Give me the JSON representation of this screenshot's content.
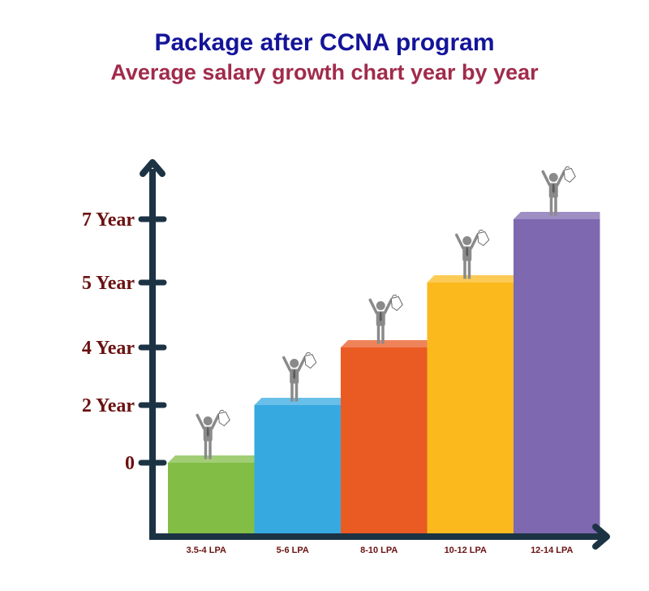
{
  "title": "Package after CCNA program",
  "subtitle": "Average salary growth chart year by year",
  "colors": {
    "title": "#14149a",
    "subtitle": "#a12b4c",
    "axis": "#1c3344",
    "tick_label": "#6b1111",
    "figure": "#8a8a8a"
  },
  "chart_data": {
    "type": "bar",
    "title": "Package after CCNA program",
    "subtitle": "Average salary growth chart year by year",
    "categories": [
      "3.5-4 LPA",
      "5-6 LPA",
      "8-10 LPA",
      "10-12 LPA",
      "12-14 LPA"
    ],
    "values": [
      0,
      2,
      4,
      5,
      7
    ],
    "y_ticks": [
      {
        "value": 0,
        "label": "0"
      },
      {
        "value": 2,
        "label": "2 Year"
      },
      {
        "value": 4,
        "label": "4 Year"
      },
      {
        "value": 5,
        "label": "5 Year"
      },
      {
        "value": 7,
        "label": "7 Year"
      }
    ],
    "bar_colors": [
      "#82bd45",
      "#36a9e1",
      "#ea5a23",
      "#fbb91e",
      "#7e68b0"
    ],
    "bar_icon": "person-with-bag-icon",
    "grid": false,
    "legend": "none",
    "xlabel": "",
    "ylabel": ""
  }
}
